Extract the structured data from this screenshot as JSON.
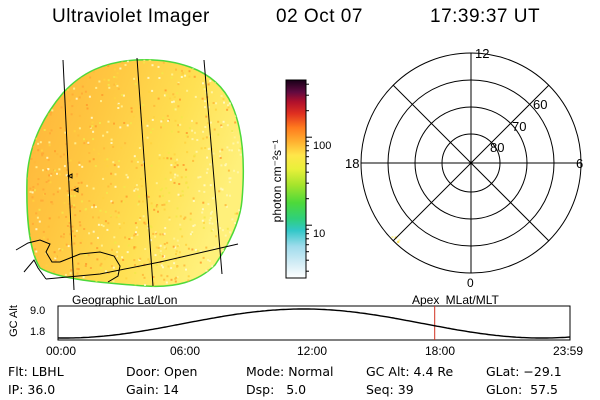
{
  "header": {
    "instrument": "Ultraviolet Imager",
    "date": "02 Oct 07",
    "time": "17:39:37 UT"
  },
  "colorbar": {
    "unit_label": "photon cm⁻²s⁻¹",
    "ticks": [
      "100",
      "10"
    ],
    "log_min": 0.4,
    "log_max": 2.65
  },
  "geo_panel": {
    "label": "Geographic Lat/Lon"
  },
  "polar_panel": {
    "label": "Apex MLat/MLT",
    "mlt_labels": [
      "12",
      "18",
      "6",
      "0"
    ],
    "mlat_labels": [
      "60",
      "70",
      "80"
    ]
  },
  "altitude_plot": {
    "ylabel": "GC Alt",
    "yticks": [
      "9.0",
      "1.8"
    ],
    "xticks": [
      "00:00",
      "06:00",
      "12:00",
      "18:00",
      "23:59"
    ],
    "current_time_hours": 17.66,
    "colors": {
      "marker": "#d03020",
      "curve": "#000000"
    }
  },
  "info": [
    {
      "k": "Flt:",
      "v": "LBHL"
    },
    {
      "k": "IP:",
      "v": "36.0"
    },
    {
      "k": "Door:",
      "v": "Open"
    },
    {
      "k": "Gain:",
      "v": "14"
    },
    {
      "k": "Mode:",
      "v": "Normal"
    },
    {
      "k": "Dsp:",
      "v": "5.0"
    },
    {
      "k": "GC Alt:",
      "v": "4.4 Re"
    },
    {
      "k": "Seq:",
      "v": "39"
    },
    {
      "k": "GLat:",
      "v": "−29.1"
    },
    {
      "k": "GLon:",
      "v": "57.5"
    }
  ]
}
